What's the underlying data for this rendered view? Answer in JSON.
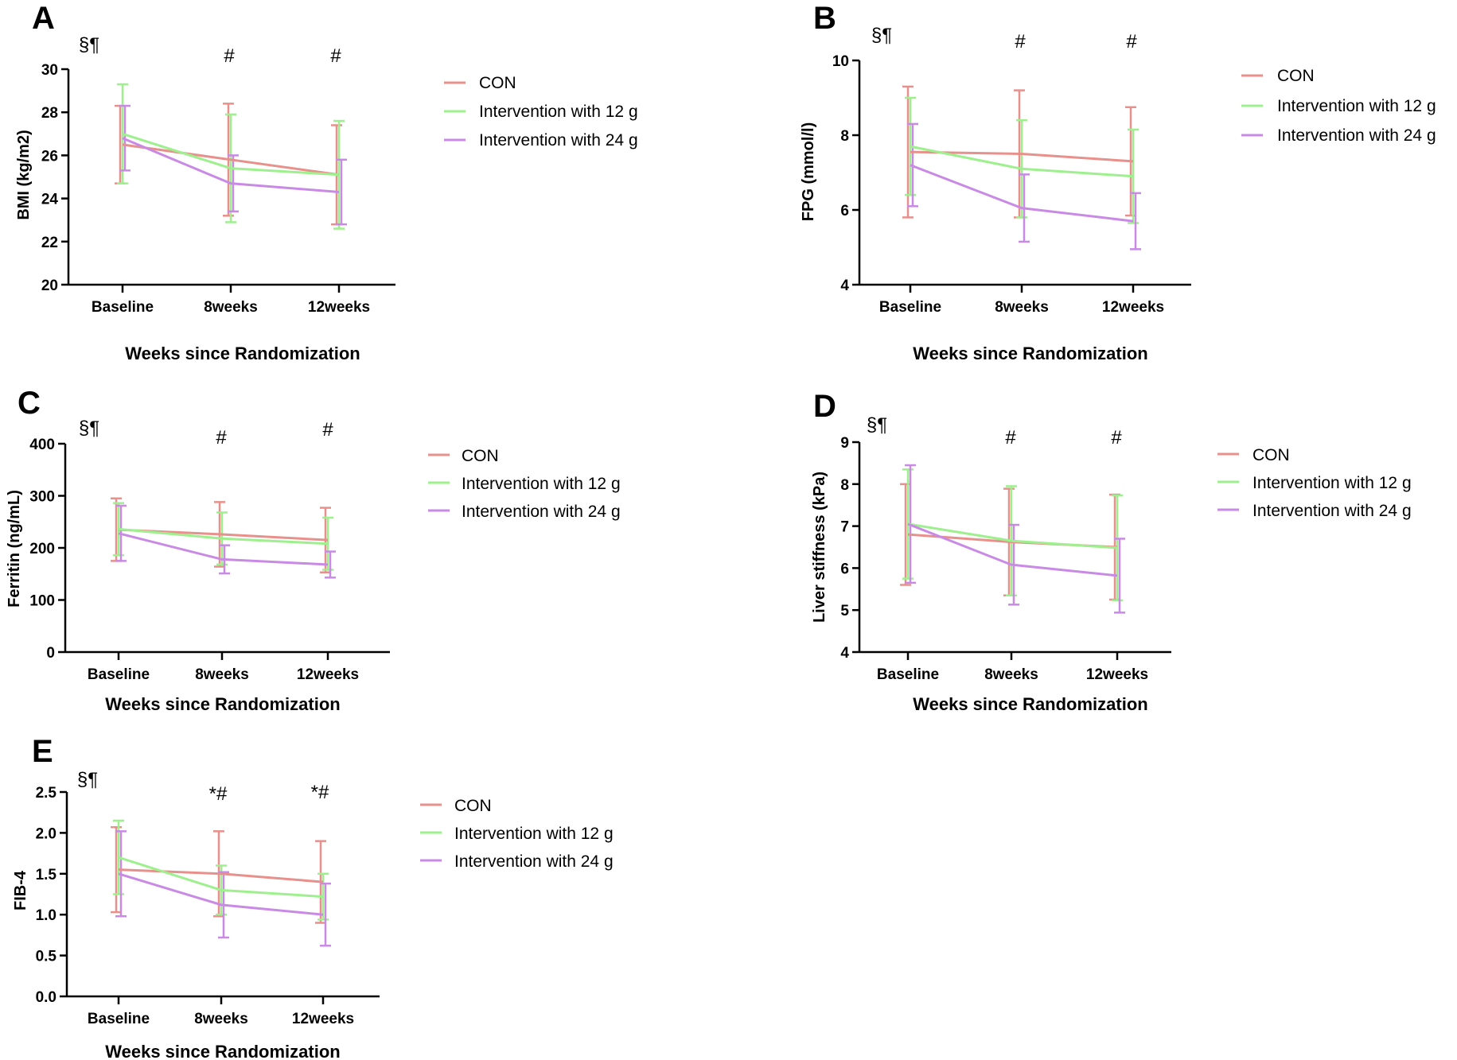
{
  "figure": {
    "panel_count": 5
  },
  "series_names": [
    "CON",
    "Intervention with 12 g",
    "Intervention with 24 g"
  ],
  "colors": {
    "con": "#E8908C",
    "g12": "#9EF08E",
    "g24": "#C98AE6",
    "axis": "#000000"
  },
  "chart_data": [
    {
      "panel": "A",
      "type": "line",
      "title": "",
      "xlabel": "Weeks since Randomization",
      "ylabel": "BMI (kg/m2)",
      "categories": [
        "Baseline",
        "8weeks",
        "12weeks"
      ],
      "ylim": [
        20,
        30
      ],
      "yticks": [
        "20",
        "22",
        "24",
        "26",
        "28",
        "30"
      ],
      "markers": [
        "§¶",
        "#",
        "#"
      ],
      "series": [
        {
          "name": "CON",
          "values": [
            26.5,
            25.8,
            25.1
          ],
          "err": [
            1.8,
            2.6,
            2.3
          ]
        },
        {
          "name": "Intervention with 12 g",
          "values": [
            27.0,
            25.4,
            25.1
          ],
          "err": [
            2.3,
            2.5,
            2.5
          ]
        },
        {
          "name": "Intervention with 24 g",
          "values": [
            26.8,
            24.7,
            24.3
          ],
          "err": [
            1.5,
            1.3,
            1.5
          ]
        }
      ]
    },
    {
      "panel": "B",
      "type": "line",
      "title": "",
      "xlabel": "Weeks since Randomization",
      "ylabel": "FPG (mmol/l)",
      "categories": [
        "Baseline",
        "8weeks",
        "12weeks"
      ],
      "ylim": [
        4,
        10
      ],
      "yticks": [
        "4",
        "6",
        "8",
        "10"
      ],
      "markers": [
        "§¶",
        "#",
        "#"
      ],
      "series": [
        {
          "name": "CON",
          "values": [
            7.55,
            7.5,
            7.3
          ],
          "err": [
            1.75,
            1.7,
            1.45
          ]
        },
        {
          "name": "Intervention with 12 g",
          "values": [
            7.7,
            7.1,
            6.9
          ],
          "err": [
            1.3,
            1.3,
            1.25
          ]
        },
        {
          "name": "Intervention with 24 g",
          "values": [
            7.2,
            6.05,
            5.7
          ],
          "err": [
            1.1,
            0.9,
            0.75
          ]
        }
      ]
    },
    {
      "panel": "C",
      "type": "line",
      "title": "",
      "xlabel": "Weeks since Randomization",
      "ylabel": "Ferritin (ng/mL)",
      "categories": [
        "Baseline",
        "8weeks",
        "12weeks"
      ],
      "ylim": [
        0,
        400
      ],
      "yticks": [
        "0",
        "100",
        "200",
        "300",
        "400"
      ],
      "markers": [
        "§¶",
        "#",
        "#"
      ],
      "series": [
        {
          "name": "CON",
          "values": [
            235,
            226,
            215
          ],
          "err": [
            60,
            62,
            62
          ]
        },
        {
          "name": "Intervention with 12 g",
          "values": [
            236,
            218,
            208
          ],
          "err": [
            50,
            50,
            50
          ]
        },
        {
          "name": "Intervention with 24 g",
          "values": [
            228,
            178,
            168
          ],
          "err": [
            53,
            27,
            25
          ]
        }
      ]
    },
    {
      "panel": "D",
      "type": "line",
      "title": "",
      "xlabel": "Weeks since Randomization",
      "ylabel": "Liver stiffness (kPa)",
      "categories": [
        "Baseline",
        "8weeks",
        "12weeks"
      ],
      "ylim": [
        4,
        9
      ],
      "yticks": [
        "4",
        "5",
        "6",
        "7",
        "8",
        "9"
      ],
      "markers": [
        "§¶",
        "#",
        "#"
      ],
      "series": [
        {
          "name": "CON",
          "values": [
            6.8,
            6.62,
            6.5
          ],
          "err": [
            1.2,
            1.27,
            1.25
          ]
        },
        {
          "name": "Intervention with 12 g",
          "values": [
            7.05,
            6.65,
            6.48
          ],
          "err": [
            1.3,
            1.3,
            1.25
          ]
        },
        {
          "name": "Intervention with 24 g",
          "values": [
            7.05,
            6.08,
            5.82
          ],
          "err": [
            1.4,
            0.95,
            0.88
          ]
        }
      ]
    },
    {
      "panel": "E",
      "type": "line",
      "title": "",
      "xlabel": "Weeks since Randomization",
      "ylabel": "FIB-4",
      "categories": [
        "Baseline",
        "8weeks",
        "12weeks"
      ],
      "ylim": [
        0,
        2.5
      ],
      "yticks": [
        "0.0",
        "0.5",
        "1.0",
        "1.5",
        "2.0",
        "2.5"
      ],
      "markers": [
        "§¶",
        "*#",
        "*#"
      ],
      "series": [
        {
          "name": "CON",
          "values": [
            1.55,
            1.5,
            1.4
          ],
          "err": [
            0.52,
            0.52,
            0.5
          ]
        },
        {
          "name": "Intervention with 12 g",
          "values": [
            1.7,
            1.3,
            1.22
          ],
          "err": [
            0.45,
            0.3,
            0.28
          ]
        },
        {
          "name": "Intervention with 24 g",
          "values": [
            1.5,
            1.12,
            1.0
          ],
          "err": [
            0.52,
            0.4,
            0.38
          ]
        }
      ]
    }
  ]
}
